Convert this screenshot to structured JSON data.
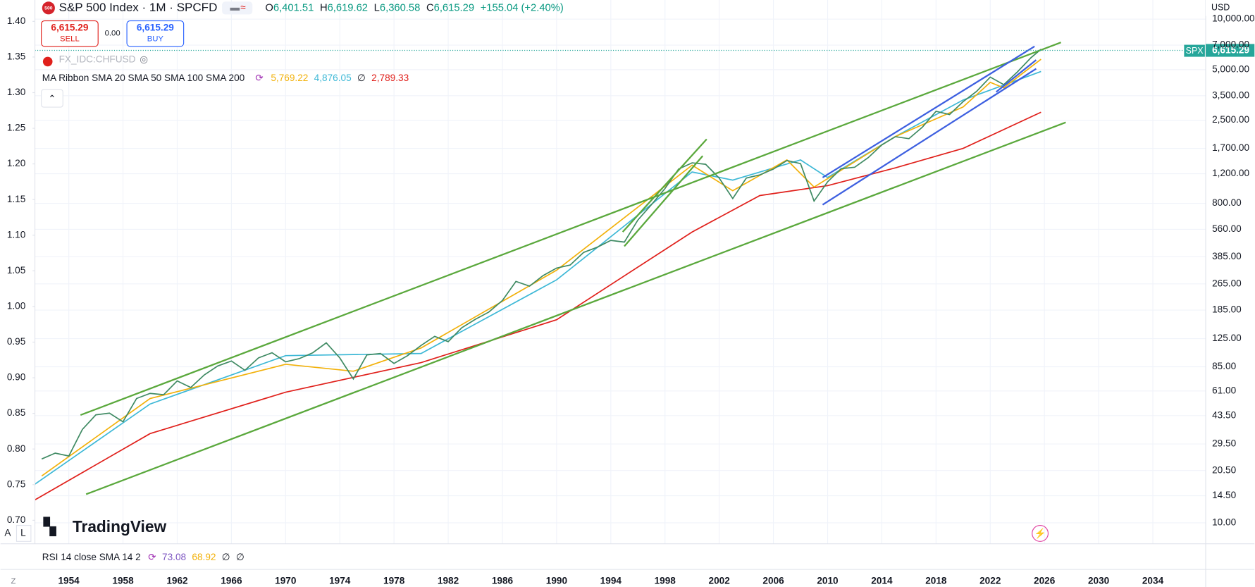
{
  "header": {
    "symbol_logo": "500",
    "title": "S&P 500 Index · 1M · SPCFD",
    "ohlc": [
      [
        "O",
        "6,401.51"
      ],
      [
        "H",
        "6,619.62"
      ],
      [
        "L",
        "6,360.58"
      ],
      [
        "C",
        "6,615.29"
      ]
    ],
    "change": "+155.04 (+2.40%)",
    "sell_price": "6,615.29",
    "sell": "SELL",
    "spread": "0.00",
    "buy_price": "6,615.29",
    "buy": "BUY",
    "compare_symbol": "FX_IDC:CHFUSD",
    "indicator": "MA Ribbon SMA 20 SMA 50 SMA 100 SMA 200",
    "indicator_values": [
      "5,769.22",
      "4,876.05",
      "∅",
      "2,789.33"
    ],
    "rsi": "RSI 14 close SMA 14 2",
    "rsi_values": [
      "73.08",
      "68.92",
      "∅",
      "∅"
    ],
    "currency": "USD",
    "price_badge_symbol": "SPX",
    "price_badge": "6,615.29",
    "brand": "TradingView",
    "scale_buttons": [
      "A",
      "L"
    ],
    "zoom": "Z"
  },
  "chart_data": {
    "type": "line",
    "log_scale": true,
    "xlim": [
      1951.5,
      2037.9
    ],
    "xticks": [
      1954,
      1958,
      1962,
      1966,
      1970,
      1974,
      1978,
      1982,
      1986,
      1990,
      1994,
      1998,
      2002,
      2006,
      2010,
      2014,
      2018,
      2022,
      2026,
      2030,
      2034
    ],
    "ylim": [
      7.5,
      13000
    ],
    "yticks": [
      {
        "value": 10,
        "label": "10.00"
      },
      {
        "value": 14.5,
        "label": "14.50"
      },
      {
        "value": 20.5,
        "label": "20.50"
      },
      {
        "value": 29.5,
        "label": "29.50"
      },
      {
        "value": 43.5,
        "label": "43.50"
      },
      {
        "value": 61,
        "label": "61.00"
      },
      {
        "value": 85,
        "label": "85.00"
      },
      {
        "value": 125,
        "label": "125.00"
      },
      {
        "value": 185,
        "label": "185.00"
      },
      {
        "value": 265,
        "label": "265.00"
      },
      {
        "value": 385,
        "label": "385.00"
      },
      {
        "value": 560,
        "label": "560.00"
      },
      {
        "value": 800,
        "label": "800.00"
      },
      {
        "value": 1200,
        "label": "1,200.00"
      },
      {
        "value": 1700,
        "label": "1,700.00"
      },
      {
        "value": 2500,
        "label": "2,500.00"
      },
      {
        "value": 3500,
        "label": "3,500.00"
      },
      {
        "value": 5000,
        "label": "5,000.00"
      },
      {
        "value": 7000,
        "label": "7,000.00"
      },
      {
        "value": 10000,
        "label": "10,000.00"
      }
    ],
    "y2lim": [
      0.667,
      1.43
    ],
    "y2ticks": [
      {
        "value": 0.7,
        "label": "0.70"
      },
      0.75,
      {
        "value": 0.8,
        "label": "0.80"
      },
      0.85,
      {
        "value": 0.9,
        "label": "0.90"
      },
      0.95,
      {
        "value": 1.0,
        "label": "1.00"
      },
      1.05,
      {
        "value": 1.1,
        "label": "1.10"
      },
      1.15,
      {
        "value": 1.2,
        "label": "1.20"
      },
      1.25,
      {
        "value": 1.3,
        "label": "1.30"
      },
      1.35,
      {
        "value": 1.4,
        "label": "1.40"
      }
    ],
    "series": [
      {
        "color": "#e0201b",
        "x": [
          1951.5,
          1960,
          1970,
          1980,
          1990,
          1995,
          2000,
          2005,
          2010,
          2015,
          2020,
          2025.75
        ],
        "values": [
          13.7,
          34,
          60,
          90,
          162,
          296,
          540,
          890,
          1020,
          1300,
          1700,
          2789.33
        ]
      },
      {
        "color": "#3db8d6",
        "x": [
          1951.5,
          1960,
          1970,
          1980,
          1990,
          2000,
          2003,
          2008,
          2010,
          2015,
          2020,
          2025.75
        ],
        "values": [
          17,
          51,
          99,
          102,
          280,
          1230,
          1100,
          1450,
          1140,
          2000,
          3300,
          4876.05
        ]
      },
      {
        "color": "#f2b10a",
        "x": [
          1952,
          1960,
          1970,
          1975,
          1980,
          1990,
          2000,
          2003,
          2007,
          2009,
          2015,
          2020,
          2022,
          2023,
          2025.75
        ],
        "values": [
          19,
          55,
          88,
          80,
          110,
          320,
          1350,
          950,
          1450,
          1000,
          2000,
          3000,
          4200,
          3900,
          5769.22
        ]
      },
      {
        "color": "#3f8a63",
        "x": [
          1952,
          1953,
          1954,
          1955,
          1956,
          1957,
          1958,
          1959,
          1960,
          1961,
          1962,
          1963,
          1964,
          1965,
          1966,
          1967,
          1968,
          1969,
          1970,
          1971,
          1972,
          1973,
          1974,
          1975,
          1976,
          1977,
          1978,
          1979,
          1980,
          1981,
          1982,
          1983,
          1984,
          1985,
          1986,
          1987,
          1988,
          1989,
          1990,
          1991,
          1992,
          1993,
          1994,
          1995,
          1996,
          1997,
          1998,
          1999,
          2000,
          2001,
          2002,
          2003,
          2004,
          2005,
          2006,
          2007,
          2008,
          2009,
          2010,
          2011,
          2012,
          2013,
          2014,
          2015,
          2016,
          2017,
          2018,
          2019,
          2020,
          2021,
          2022,
          2023,
          2024,
          2025,
          2025.75
        ],
        "values": [
          24,
          26,
          25,
          36,
          44,
          45,
          40,
          55,
          59,
          58,
          70,
          64,
          76,
          86,
          92,
          81,
          96,
          103,
          91,
          95,
          103,
          118,
          96,
          72,
          100,
          102,
          89,
          99,
          114,
          129,
          120,
          145,
          163,
          180,
          211,
          274,
          257,
          297,
          329,
          343,
          408,
          438,
          481,
          470,
          636,
          786,
          980,
          1280,
          1394,
          1366,
          1130,
          855,
          1131,
          1181,
          1280,
          1438,
          1378,
          825,
          1073,
          1286,
          1312,
          1498,
          1782,
          1995,
          1940,
          2279,
          2823,
          2704,
          3225,
          3714,
          4515,
          4076,
          4845,
          5881,
          6615.29
        ]
      }
    ]
  }
}
